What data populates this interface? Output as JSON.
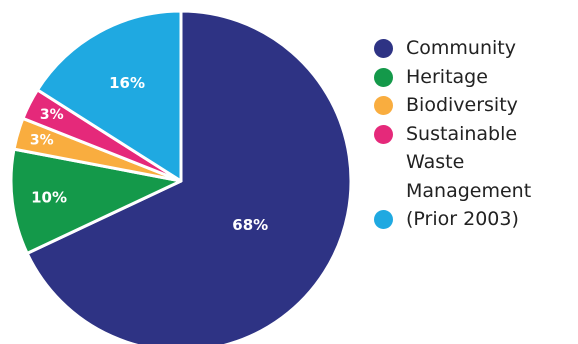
{
  "chart_data": {
    "type": "pie",
    "categories": [
      "Community",
      "Heritage",
      "Biodiversity",
      "Sustainable Waste Management",
      "(Prior 2003)"
    ],
    "values": [
      68,
      10,
      3,
      3,
      16
    ],
    "value_labels": [
      "68%",
      "10%",
      "3%",
      "3%",
      "16%"
    ],
    "colors": [
      "#2e3384",
      "#14994a",
      "#f9ad3f",
      "#e5297a",
      "#1fa9e1"
    ],
    "start_angle_deg": 0,
    "direction": "clockwise",
    "legend_position": "right",
    "title": "",
    "slice_border_color": "#ffffff"
  },
  "legend": {
    "items": [
      {
        "label": "Community",
        "color": "#2e3384"
      },
      {
        "label": "Heritage",
        "color": "#14994a"
      },
      {
        "label": "Biodiversity",
        "color": "#f9ad3f"
      },
      {
        "label": "Sustainable\nWaste\nManagement\n(Prior 2003)",
        "color": "#e5297a"
      },
      {
        "label": "",
        "color": "#1fa9e1"
      }
    ]
  }
}
